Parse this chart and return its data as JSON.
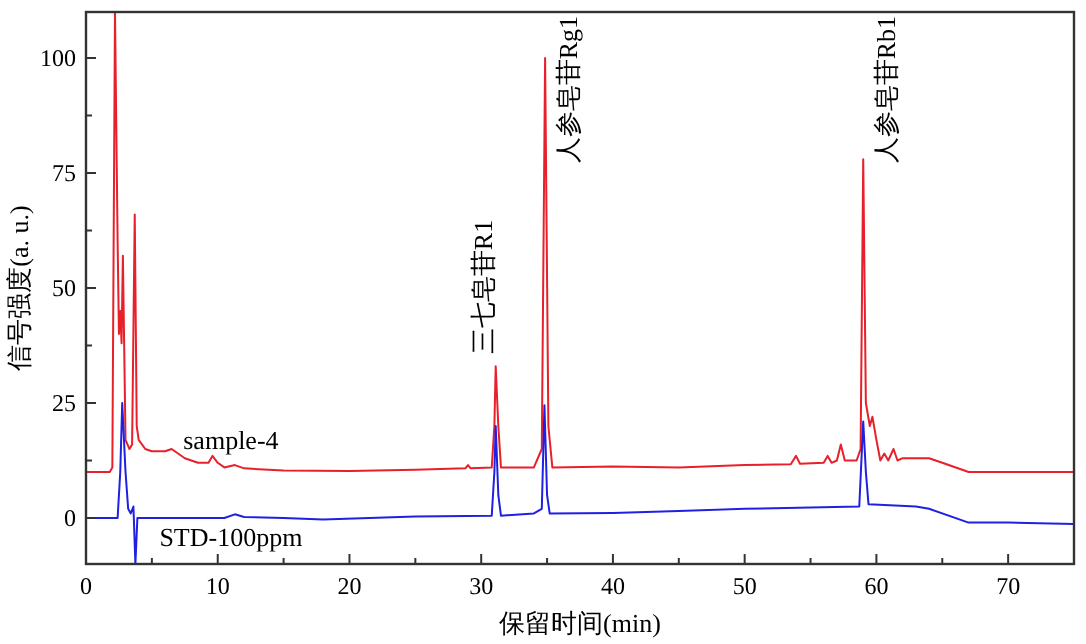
{
  "chart_data": {
    "type": "line",
    "xlabel": "保留时间(min)",
    "ylabel": "信号强度(a. u.)",
    "xlim": [
      0,
      75
    ],
    "ylim": [
      -10,
      110
    ],
    "xticks": [
      0,
      10,
      20,
      30,
      40,
      50,
      60,
      70
    ],
    "yticks": [
      0,
      25,
      50,
      75,
      100
    ],
    "grid": false,
    "marker": "none",
    "line_style": "solid",
    "annotations": [
      {
        "text": "三七皂苷R1",
        "x": 31.1,
        "y": 33
      },
      {
        "text": "人参皂苷Rg1",
        "x": 34.85,
        "y": 100
      },
      {
        "text": "人参皂苷Rb1",
        "x": 59.0,
        "y": 78
      }
    ],
    "series": [
      {
        "name": "sample-4",
        "color": "#e8202a",
        "x": [
          0,
          1.8,
          2.0,
          2.2,
          2.4,
          2.5,
          2.6,
          2.7,
          2.8,
          3.0,
          3.3,
          3.5,
          3.7,
          3.85,
          4.0,
          4.5,
          5,
          6,
          6.5,
          7.5,
          8.5,
          9.3,
          9.6,
          10,
          10.5,
          11.3,
          12,
          15,
          20,
          25,
          28.8,
          29,
          29.2,
          30.8,
          31,
          31.1,
          31.3,
          31.5,
          34,
          34.6,
          34.85,
          35.1,
          35.4,
          40,
          45,
          50,
          53.5,
          53.9,
          54.2,
          56,
          56.3,
          56.6,
          57,
          57.3,
          57.6,
          58.5,
          58.8,
          59.0,
          59.2,
          59.5,
          59.7,
          60,
          60.3,
          60.6,
          60.9,
          61.3,
          61.6,
          62,
          64,
          65,
          67,
          70,
          75
        ],
        "values": [
          10,
          10,
          11,
          110,
          60,
          40,
          45,
          38,
          57,
          17,
          15,
          16,
          66,
          20,
          17,
          15,
          14.5,
          14.5,
          15,
          13,
          12,
          12,
          13.5,
          12,
          11,
          11.5,
          10.8,
          10.3,
          10.2,
          10.5,
          10.8,
          11.5,
          10.8,
          11,
          20,
          33,
          20,
          11,
          11,
          15,
          100,
          20,
          11,
          11.2,
          11,
          11.5,
          11.7,
          13.5,
          11.8,
          12,
          13.5,
          12,
          12.5,
          16,
          12.5,
          12.5,
          15,
          78,
          25,
          20,
          22,
          17,
          12.5,
          14,
          12.5,
          15,
          12.5,
          13,
          13,
          12,
          10,
          10,
          10
        ]
      },
      {
        "name": "STD-100ppm",
        "color": "#2020e0",
        "x": [
          0,
          2.4,
          2.6,
          2.75,
          3.0,
          3.2,
          3.4,
          3.6,
          3.75,
          3.9,
          5,
          10.5,
          11.3,
          12,
          15,
          18,
          25,
          30.8,
          31,
          31.1,
          31.3,
          31.5,
          34,
          34.6,
          34.8,
          35.0,
          35.2,
          40,
          45,
          50,
          58.7,
          59.0,
          59.2,
          59.4,
          63,
          64,
          67,
          70,
          75
        ],
        "values": [
          0,
          0,
          10,
          25,
          10,
          2,
          1,
          2.5,
          -10,
          0,
          0,
          0,
          0.8,
          0.2,
          0,
          -0.3,
          0.3,
          0.5,
          10,
          20,
          5,
          0.5,
          1,
          2,
          24.5,
          5,
          1,
          1.1,
          1.5,
          2,
          2.5,
          21,
          10,
          3,
          2.5,
          2,
          -1,
          -1,
          -1.3
        ]
      }
    ]
  }
}
